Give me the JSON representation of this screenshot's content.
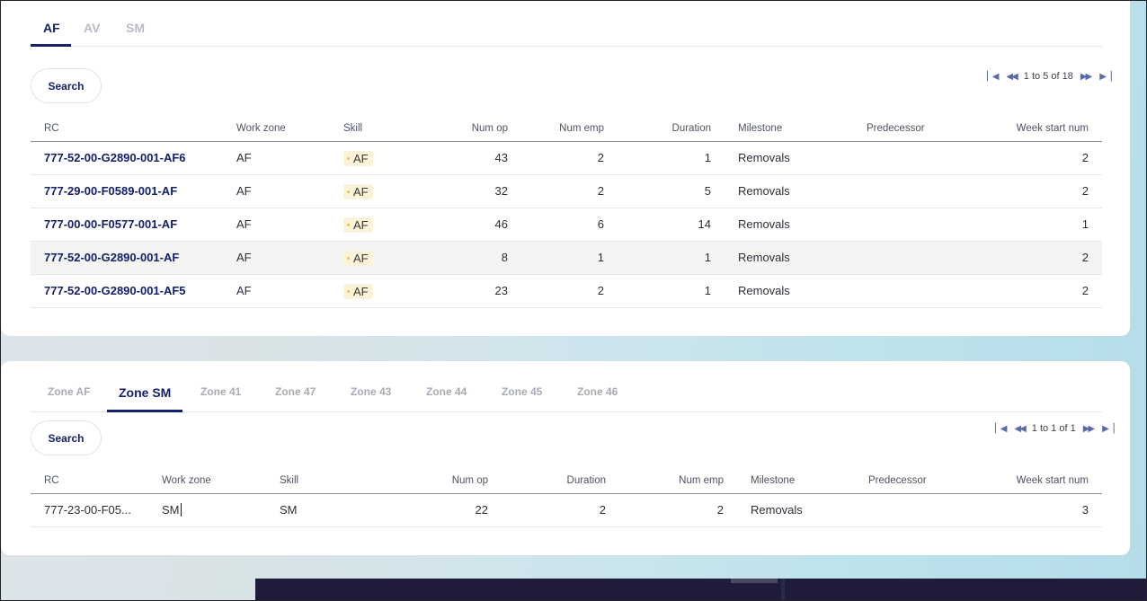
{
  "panel1": {
    "tabs": [
      "AF",
      "AV",
      "SM"
    ],
    "active_tab": "AF",
    "search_label": "Search",
    "pager_text": "1 to 5 of 18",
    "columns": [
      "RC",
      "Work zone",
      "Skill",
      "Num op",
      "Num emp",
      "Duration",
      "Milestone",
      "Predecessor",
      "Week start num"
    ],
    "rows": [
      {
        "rc": "777-52-00-G2890-001-AF6",
        "zone": "AF",
        "skill": "AF",
        "num_op": "43",
        "num_emp": "2",
        "duration": "1",
        "milestone": "Removals",
        "predecessor": "",
        "week": "2"
      },
      {
        "rc": "777-29-00-F0589-001-AF",
        "zone": "AF",
        "skill": "AF",
        "num_op": "32",
        "num_emp": "2",
        "duration": "5",
        "milestone": "Removals",
        "predecessor": "",
        "week": "2"
      },
      {
        "rc": "777-00-00-F0577-001-AF",
        "zone": "AF",
        "skill": "AF",
        "num_op": "46",
        "num_emp": "6",
        "duration": "14",
        "milestone": "Removals",
        "predecessor": "",
        "week": "1"
      },
      {
        "rc": "777-52-00-G2890-001-AF",
        "zone": "AF",
        "skill": "AF",
        "num_op": "8",
        "num_emp": "1",
        "duration": "1",
        "milestone": "Removals",
        "predecessor": "",
        "week": "2"
      },
      {
        "rc": "777-52-00-G2890-001-AF5",
        "zone": "AF",
        "skill": "AF",
        "num_op": "23",
        "num_emp": "2",
        "duration": "1",
        "milestone": "Removals",
        "predecessor": "",
        "week": "2"
      }
    ]
  },
  "panel2": {
    "tabs": [
      "Zone AF",
      "Zone SM",
      "Zone 41",
      "Zone 47",
      "Zone 43",
      "Zone 44",
      "Zone 45",
      "Zone 46"
    ],
    "active_tab": "Zone SM",
    "search_label": "Search",
    "pager_text": "1 to 1 of 1",
    "columns": [
      "RC",
      "Work zone",
      "Skill",
      "Num op",
      "Duration",
      "Num emp",
      "Milestone",
      "Predecessor",
      "Week start num"
    ],
    "rows": [
      {
        "rc": "777-23-00-F05...",
        "zone": "SM",
        "skill": "SM",
        "num_op": "22",
        "duration": "2",
        "num_emp": "2",
        "milestone": "Removals",
        "predecessor": "",
        "week": "3"
      }
    ]
  },
  "colors": {
    "accent": "#14206e",
    "badge_bg": "#faf3d9",
    "badge_dot": "#e4c24e"
  }
}
